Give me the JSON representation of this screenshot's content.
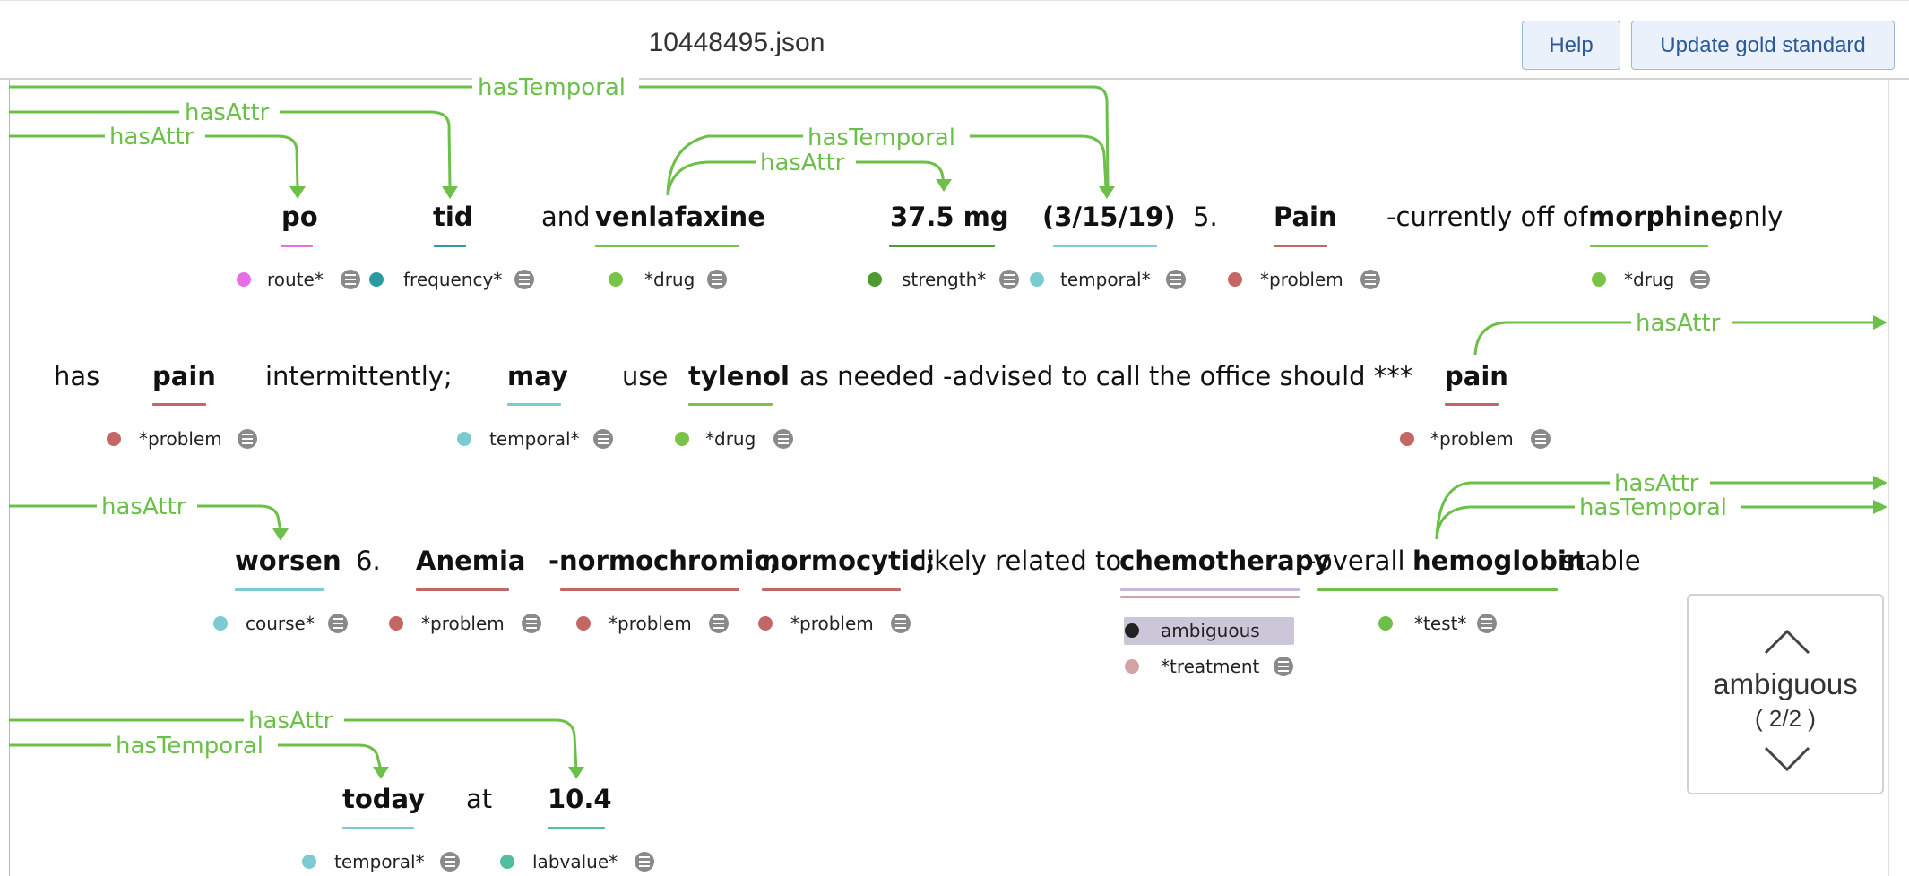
{
  "header": {
    "file_title": "10448495.json",
    "help_label": "Help",
    "update_label": "Update gold standard"
  },
  "colors": {
    "relation": "#6cc04a",
    "route": "#e86ee6",
    "frequency": "#2a9aa3",
    "drug": "#79c447",
    "strength": "#4e9a35",
    "temporal": "#7ccbd0",
    "problem": "#c26666",
    "course": "#7ccbd0",
    "test": "#6cc04a",
    "labvalue": "#4fbfa0",
    "treatment": "#d4a2a2",
    "ambiguous": "#cbc6d8"
  },
  "relations": {
    "has_attr": "hasAttr",
    "has_temporal": "hasTemporal"
  },
  "tokens": {
    "l1_po": "po",
    "l1_tid": "tid",
    "l1_and": "and",
    "l1_venlafaxine": "venlafaxine",
    "l1_strength": "37.5 mg",
    "l1_date": "(3/15/19)",
    "l1_five": "5.",
    "l1_pain": "Pain",
    "l1_currently": "-currently off of",
    "l1_morphine": "morphine;",
    "l1_only": "only",
    "l2_has": "has",
    "l2_pain": "pain",
    "l2_intermittently": "intermittently;",
    "l2_may": "may",
    "l2_use": "use",
    "l2_tylenol": "tylenol",
    "l2_asneeded": "as needed -advised to call the office should ***",
    "l2_pain2": "pain",
    "l3_worsen": "worsen",
    "l3_six": "6.",
    "l3_anemia": "Anemia",
    "l3_normochromic": "-normochromic,",
    "l3_normocytic": "normocytic;",
    "l3_likely": "likely related to",
    "l3_chemotherapy": "chemotherapy",
    "l3_overall": "-overall",
    "l3_hemoglobin": "hemoglobin",
    "l3_stable": "stable",
    "l4_today": "today",
    "l4_at": "at",
    "l4_value": "10.4"
  },
  "labels": {
    "route": "route*",
    "frequency": "frequency*",
    "drug": "*drug",
    "strength": "strength*",
    "temporal": "temporal*",
    "problem": "*problem",
    "course": "course*",
    "ambiguous": "ambiguous",
    "treatment": "*treatment",
    "test": "*test*",
    "labvalue": "labvalue*"
  },
  "navigator": {
    "label": "ambiguous",
    "count": "( 2/2 )"
  }
}
